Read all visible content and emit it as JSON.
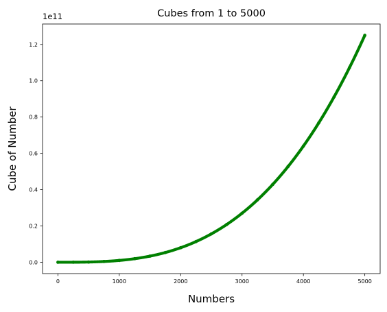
{
  "chart_data": {
    "type": "scatter",
    "title": "Cubes from 1 to 5000",
    "xlabel": "Numbers",
    "ylabel": "Cube of Number",
    "y_offset_label": "1e11",
    "xlim": [
      -250,
      5250
    ],
    "ylim": [
      -6250000000,
      131250000000
    ],
    "x_range": [
      1,
      5000
    ],
    "function": "x^3",
    "x_ticks": [
      0,
      1000,
      2000,
      3000,
      4000,
      5000
    ],
    "x_tick_labels": [
      "0",
      "1000",
      "2000",
      "3000",
      "4000",
      "5000"
    ],
    "y_ticks": [
      0,
      20000000000,
      40000000000,
      60000000000,
      80000000000,
      100000000000,
      120000000000
    ],
    "y_tick_labels": [
      "0.0",
      "0.2",
      "0.4",
      "0.6",
      "0.8",
      "1.0",
      "1.2"
    ],
    "grid": false,
    "legend": "none",
    "series": [
      {
        "color": "#008000",
        "x": [
          1,
          250,
          500,
          750,
          1000,
          1250,
          1500,
          1750,
          2000,
          2250,
          2500,
          2750,
          3000,
          3250,
          3500,
          3750,
          4000,
          4250,
          4500,
          4750,
          5000
        ],
        "y": [
          1,
          15625000,
          125000000,
          421875000,
          1000000000,
          1953125000,
          3375000000,
          5359375000,
          8000000000,
          11390625000,
          15625000000,
          20796875000,
          27000000000,
          34328125000,
          42875000000,
          52734375000,
          64000000000,
          76765625000,
          91125000000,
          107171875000,
          125000000000
        ]
      }
    ]
  }
}
